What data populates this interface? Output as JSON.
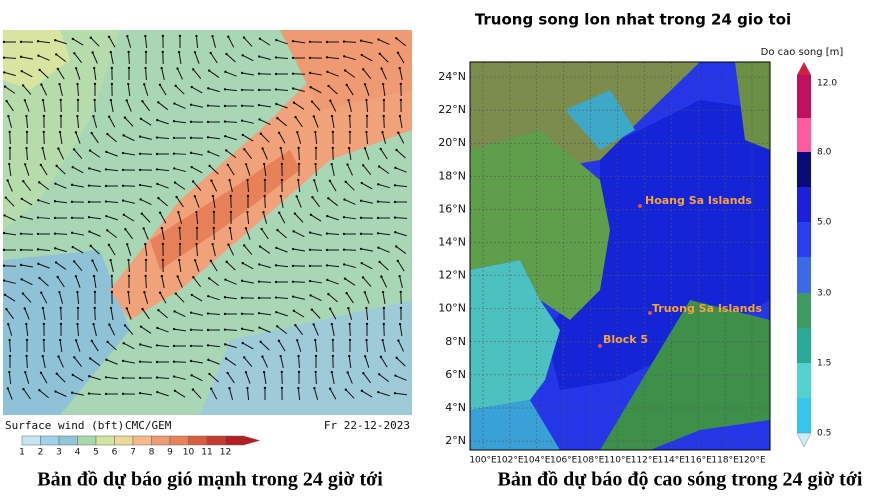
{
  "left": {
    "legend_title": "Surface wind (bft)",
    "source": "CMC/GEM",
    "date": "Fr 22-12-2023",
    "scale_labels": [
      "1",
      "2",
      "3",
      "4",
      "5",
      "6",
      "7",
      "8",
      "9",
      "10",
      "11",
      "12"
    ],
    "caption": "Bản đồ dự báo gió mạnh trong 24 giờ tới"
  },
  "right": {
    "title": "Truong song lon nhat trong 24 gio toi",
    "colorbar_title": "Do cao song [m]",
    "colorbar_labels": [
      "12.0",
      "8.0",
      "5.0",
      "3.0",
      "1.5",
      "0.5"
    ],
    "lat_labels": [
      "24°N",
      "22°N",
      "20°N",
      "18°N",
      "16°N",
      "14°N",
      "12°N",
      "10°N",
      "8°N",
      "6°N",
      "4°N",
      "2°N"
    ],
    "lon_labels": [
      "100°E",
      "102°E",
      "104°E",
      "106°E",
      "108°E",
      "110°E",
      "112°E",
      "114°E",
      "116°E",
      "118°E",
      "120°E"
    ],
    "places": [
      "Hoang Sa Islands",
      "Truong Sa Islands",
      "Block 5"
    ],
    "caption": "Bản đồ dự báo độ cao sóng trong 24 giờ tới"
  }
}
